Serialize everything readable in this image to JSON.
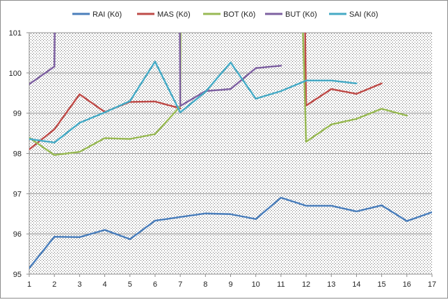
{
  "chart_data": {
    "type": "line",
    "title": "",
    "xlabel": "",
    "ylabel": "",
    "x": [
      1,
      2,
      3,
      4,
      5,
      6,
      7,
      8,
      9,
      10,
      11,
      12,
      13,
      14,
      15,
      16,
      17
    ],
    "ylim": [
      95,
      101
    ],
    "yticks": [
      95,
      96,
      97,
      98,
      99,
      100,
      101
    ],
    "grid": "horizontal",
    "legend": "top",
    "series": [
      {
        "name": "RAI (Kö)",
        "color": "#4a7ebb",
        "values": [
          95.15,
          95.93,
          95.92,
          96.1,
          95.87,
          96.33,
          96.42,
          96.51,
          96.49,
          96.37,
          96.9,
          96.7,
          96.7,
          96.56,
          96.71,
          96.32,
          96.54
        ]
      },
      {
        "name": "MAS (Kö)",
        "color": "#be4b48",
        "values": [
          98.1,
          98.6,
          99.47,
          99.03,
          99.28,
          99.29,
          99.12,
          null,
          null,
          null,
          null,
          99.19,
          99.6,
          99.48,
          99.74,
          null,
          null
        ],
        "offchart": [
          {
            "from_x": 11.95,
            "to_x": 12,
            "to_y": 99.19
          }
        ]
      },
      {
        "name": "BOT (Kö)",
        "color": "#98b954",
        "values": [
          98.39,
          97.96,
          98.04,
          98.38,
          98.36,
          98.48,
          99.17,
          null,
          null,
          null,
          null,
          98.29,
          98.72,
          98.86,
          99.11,
          98.94,
          null
        ],
        "offchart": [
          {
            "from_x": 7,
            "from_y": 99.17,
            "to_x": 7.02
          },
          {
            "from_x": 11.85,
            "to_x": 12,
            "to_y": 98.29
          }
        ]
      },
      {
        "name": "BUT (Kö)",
        "color": "#7d60a0",
        "values": [
          99.72,
          100.16,
          null,
          null,
          null,
          null,
          99.18,
          99.55,
          99.6,
          100.12,
          100.18,
          null,
          null,
          null,
          null,
          null,
          null
        ],
        "offchart": [
          {
            "from_x": 2,
            "from_y": 100.16,
            "to_x": 2.02
          },
          {
            "from_x": 6.98,
            "to_x": 7,
            "to_y": 99.18
          }
        ]
      },
      {
        "name": "SAI (Kö)",
        "color": "#46aac5",
        "values": [
          98.36,
          98.27,
          98.76,
          99.02,
          99.3,
          100.28,
          99.02,
          99.53,
          100.26,
          99.36,
          99.55,
          99.81,
          99.81,
          99.74,
          null,
          null,
          null
        ]
      }
    ]
  }
}
